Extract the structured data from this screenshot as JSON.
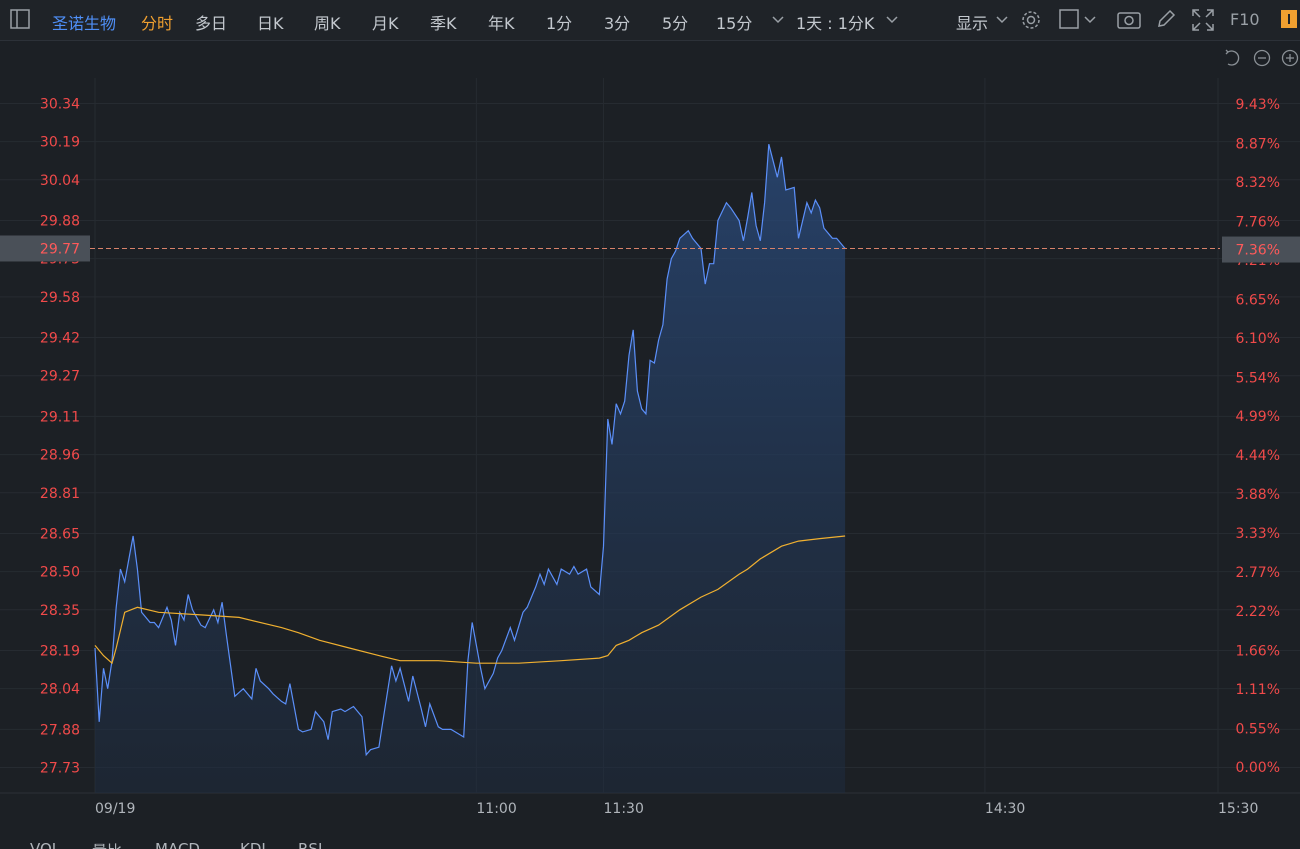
{
  "toolbar": {
    "stock": "圣诺生物",
    "tabs": [
      "分时",
      "多日",
      "日K",
      "周K",
      "月K",
      "季K",
      "年K",
      "1分",
      "3分",
      "5分",
      "15分"
    ],
    "period": "1天 : 1分K",
    "display": "显示",
    "f10": "F10"
  },
  "indicator_tabs": [
    "VOL",
    "量比",
    "MACD",
    "KDJ",
    "RSI"
  ],
  "chart_data": {
    "type": "line",
    "xlim": [
      0,
      265
    ],
    "xticks": [
      {
        "value": 0,
        "label": "09/19"
      },
      {
        "value": 90,
        "label": "11:00"
      },
      {
        "value": 120,
        "label": "11:30"
      },
      {
        "value": 210,
        "label": "14:30"
      },
      {
        "value": 265,
        "label": "15:30"
      }
    ],
    "ylim": [
      27.63,
      30.44
    ],
    "yticks": [
      27.73,
      27.88,
      28.04,
      28.19,
      28.35,
      {
        "value": 28.5,
        "label": "28.50"
      },
      28.65,
      28.81,
      28.96,
      29.11,
      29.27,
      29.42,
      29.58,
      29.73,
      29.88,
      30.04,
      30.19,
      30.34
    ],
    "y2lim": [
      -0.37,
      9.8
    ],
    "y2ticks": [
      {
        "value": 0,
        "label": "0.00%"
      },
      {
        "value": 0.55,
        "label": "0.55%"
      },
      {
        "value": 1.11,
        "label": "1.11%"
      },
      {
        "value": 1.66,
        "label": "1.66%"
      },
      {
        "value": 2.22,
        "label": "2.22%"
      },
      {
        "value": 2.77,
        "label": "2.77%"
      },
      {
        "value": 3.33,
        "label": "3.33%"
      },
      {
        "value": 3.88,
        "label": "3.88%"
      },
      {
        "value": 4.44,
        "label": "4.44%"
      },
      {
        "value": 4.99,
        "label": "4.99%"
      },
      {
        "value": 5.54,
        "label": "5.54%"
      },
      {
        "value": 6.1,
        "label": "6.10%"
      },
      {
        "value": 6.65,
        "label": "6.65%"
      },
      {
        "value": 7.21,
        "label": "7.21%"
      },
      {
        "value": 7.76,
        "label": "7.76%"
      },
      {
        "value": 8.32,
        "label": "8.32%"
      },
      {
        "value": 8.87,
        "label": "8.87%"
      },
      {
        "value": 9.43,
        "label": "9.43%"
      }
    ],
    "grid": true,
    "last_price": 29.77,
    "last_change": {
      "value": 7.36,
      "label": "7.36%"
    },
    "series": [
      {
        "color": "#5b8ff9",
        "fill": true,
        "x": [
          0,
          1,
          2,
          3,
          4,
          5,
          6,
          7,
          9,
          10,
          11,
          13,
          14,
          15,
          17,
          18,
          19,
          20,
          21,
          22,
          23,
          25,
          26,
          28,
          29,
          30,
          31,
          33,
          35,
          37,
          38,
          39,
          41,
          42,
          44,
          45,
          46,
          48,
          49,
          51,
          52,
          54,
          55,
          56,
          58,
          59,
          61,
          63,
          64,
          65,
          67,
          68,
          70,
          71,
          72,
          74,
          75,
          77,
          78,
          79,
          81,
          82,
          84,
          85,
          87,
          88,
          89,
          91,
          92,
          94,
          95,
          96,
          98,
          99,
          101,
          102,
          104,
          105,
          106,
          107,
          109,
          110,
          112,
          113,
          114,
          116,
          117,
          119,
          120,
          121,
          122,
          123,
          124,
          125,
          126,
          127,
          128,
          129,
          130,
          131,
          132,
          133,
          134,
          135,
          136,
          137,
          138,
          140,
          141,
          143,
          144,
          145,
          146,
          147,
          149,
          150,
          152,
          153,
          154,
          155,
          156,
          157,
          158,
          159,
          161,
          162,
          163,
          165,
          166,
          168,
          169,
          170,
          171,
          172,
          174,
          175,
          177
        ],
        "values": [
          28.2,
          27.91,
          28.12,
          28.04,
          28.15,
          28.36,
          28.51,
          28.46,
          28.64,
          28.51,
          28.34,
          28.3,
          28.3,
          28.28,
          28.36,
          28.31,
          28.21,
          28.34,
          28.31,
          28.41,
          28.35,
          28.29,
          28.28,
          28.35,
          28.3,
          28.38,
          28.25,
          28.01,
          28.04,
          28.0,
          28.12,
          28.07,
          28.04,
          28.02,
          27.99,
          27.98,
          28.06,
          27.88,
          27.87,
          27.88,
          27.95,
          27.91,
          27.84,
          27.95,
          27.96,
          27.95,
          27.97,
          27.93,
          27.78,
          27.8,
          27.81,
          27.92,
          28.13,
          28.07,
          28.12,
          27.99,
          28.09,
          27.96,
          27.89,
          27.98,
          27.89,
          27.88,
          27.88,
          27.87,
          27.85,
          28.15,
          28.3,
          28.12,
          28.04,
          28.1,
          28.16,
          28.19,
          28.28,
          28.23,
          28.34,
          28.36,
          28.44,
          28.49,
          28.45,
          28.51,
          28.45,
          28.51,
          28.49,
          28.52,
          28.49,
          28.51,
          28.44,
          28.41,
          28.6,
          29.1,
          29.0,
          29.16,
          29.12,
          29.17,
          29.35,
          29.45,
          29.21,
          29.14,
          29.12,
          29.33,
          29.32,
          29.41,
          29.47,
          29.65,
          29.73,
          29.76,
          29.81,
          29.84,
          29.81,
          29.77,
          29.63,
          29.71,
          29.71,
          29.88,
          29.95,
          29.93,
          29.88,
          29.8,
          29.89,
          29.99,
          29.86,
          29.8,
          29.95,
          30.18,
          30.05,
          30.13,
          30.0,
          30.01,
          29.81,
          29.95,
          29.91,
          29.96,
          29.93,
          29.85,
          29.81,
          29.81,
          29.77
        ]
      },
      {
        "color": "#f0b030",
        "fill": false,
        "x": [
          0,
          2,
          4,
          5,
          7,
          10,
          15,
          25,
          34,
          44,
          48,
          53,
          60,
          67,
          72,
          81,
          90,
          100,
          110,
          119,
          121,
          123,
          126,
          129,
          133,
          138,
          143,
          147,
          152,
          154,
          157,
          162,
          166,
          171,
          177
        ],
        "values": [
          28.21,
          28.17,
          28.14,
          28.2,
          28.34,
          28.36,
          28.34,
          28.33,
          28.32,
          28.28,
          28.26,
          28.23,
          28.2,
          28.17,
          28.15,
          28.15,
          28.14,
          28.14,
          28.15,
          28.16,
          28.17,
          28.21,
          28.23,
          28.26,
          28.29,
          28.35,
          28.4,
          28.43,
          28.49,
          28.51,
          28.55,
          28.6,
          28.62,
          28.63,
          28.64
        ]
      }
    ]
  }
}
